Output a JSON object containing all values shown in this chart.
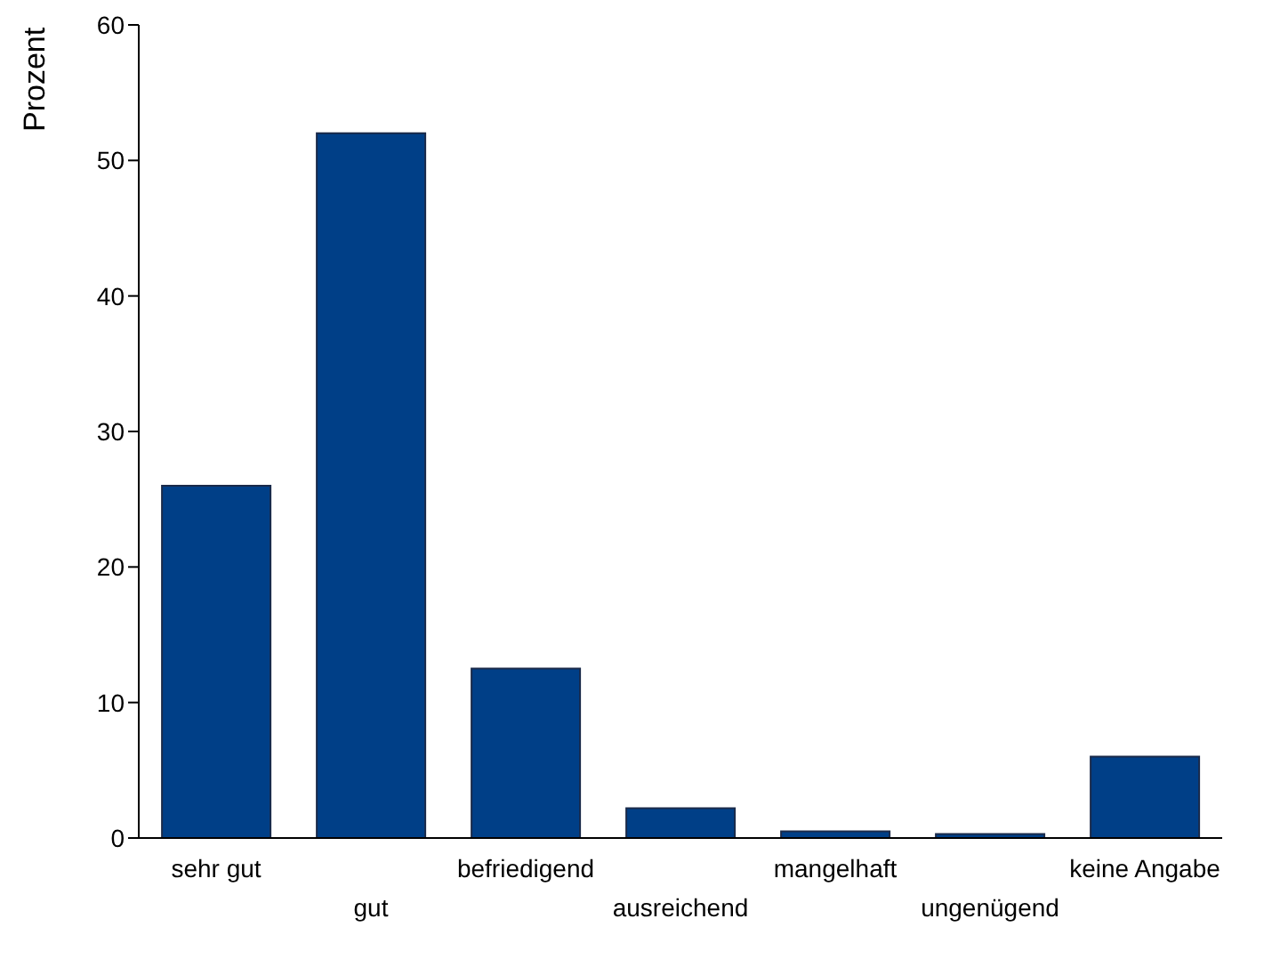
{
  "chart_data": {
    "type": "bar",
    "ylabel": "Prozent",
    "categories": [
      "sehr gut",
      "gut",
      "befriedigend",
      "ausreichend",
      "mangelhaft",
      "ungenügend",
      "keine Angabe"
    ],
    "values": [
      26,
      52,
      12.5,
      2.2,
      0.5,
      0.3,
      6
    ],
    "color": "#003f87",
    "ylim": [
      0,
      60
    ],
    "yticks": [
      0,
      10,
      20,
      30,
      40,
      50,
      60
    ],
    "grid": false
  }
}
